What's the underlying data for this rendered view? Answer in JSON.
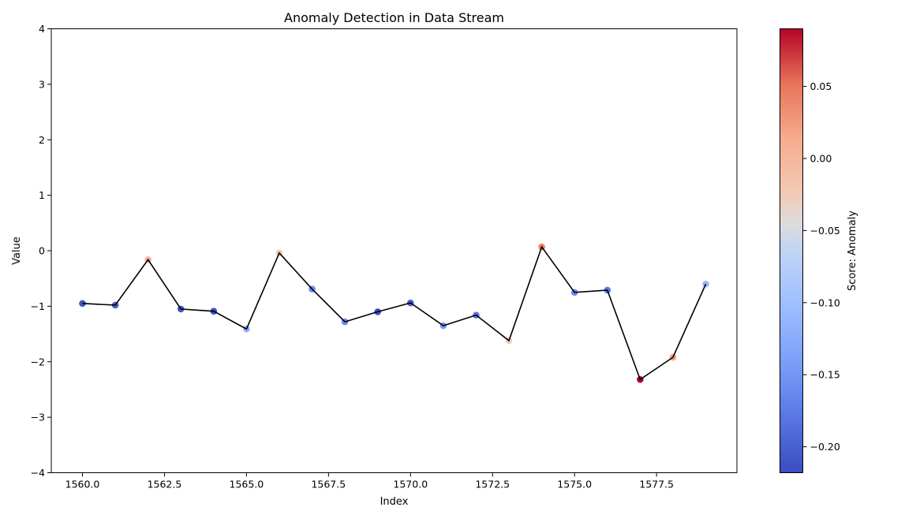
{
  "chart_data": {
    "type": "scatter",
    "title": "Anomaly Detection in Data Stream",
    "xlabel": "Index",
    "ylabel": "Value",
    "xlim": [
      1559.05,
      1579.95
    ],
    "ylim": [
      -4,
      4
    ],
    "x_ticks": [
      1560.0,
      1562.5,
      1565.0,
      1567.5,
      1570.0,
      1572.5,
      1575.0,
      1577.5
    ],
    "x_tick_labels": [
      "1560.0",
      "1562.5",
      "1565.0",
      "1567.5",
      "1570.0",
      "1572.5",
      "1575.0",
      "1577.5"
    ],
    "y_ticks": [
      -4,
      -3,
      -2,
      -1,
      0,
      1,
      2,
      3,
      4
    ],
    "y_tick_labels": [
      "−4",
      "−3",
      "−2",
      "−1",
      "0",
      "1",
      "2",
      "3",
      "4"
    ],
    "grid": false,
    "line_color": "#000000",
    "colormap": "coolwarm",
    "colorbar": {
      "label": "Score: Anomaly",
      "range": [
        -0.218,
        0.09
      ],
      "ticks": [
        -0.2,
        -0.15,
        -0.1,
        -0.05,
        0.0,
        0.05
      ],
      "tick_labels": [
        "−0.20",
        "−0.15",
        "−0.10",
        "−0.05",
        "0.00",
        "0.05"
      ]
    },
    "x": [
      1560,
      1561,
      1562,
      1563,
      1564,
      1565,
      1566,
      1567,
      1568,
      1569,
      1570,
      1571,
      1572,
      1573,
      1574,
      1575,
      1576,
      1577,
      1578,
      1579
    ],
    "y": [
      -0.95,
      -0.98,
      -0.16,
      -1.05,
      -1.09,
      -1.41,
      -0.04,
      -0.69,
      -1.28,
      -1.1,
      -0.94,
      -1.35,
      -1.16,
      -1.62,
      0.07,
      -0.75,
      -0.71,
      -2.32,
      -1.92,
      -0.6
    ],
    "scores": [
      -0.21,
      -0.205,
      0.005,
      -0.21,
      -0.215,
      -0.12,
      -0.02,
      -0.16,
      -0.16,
      -0.215,
      -0.2,
      -0.15,
      -0.18,
      -0.03,
      0.04,
      -0.16,
      -0.18,
      0.09,
      0.02,
      -0.11
    ]
  }
}
